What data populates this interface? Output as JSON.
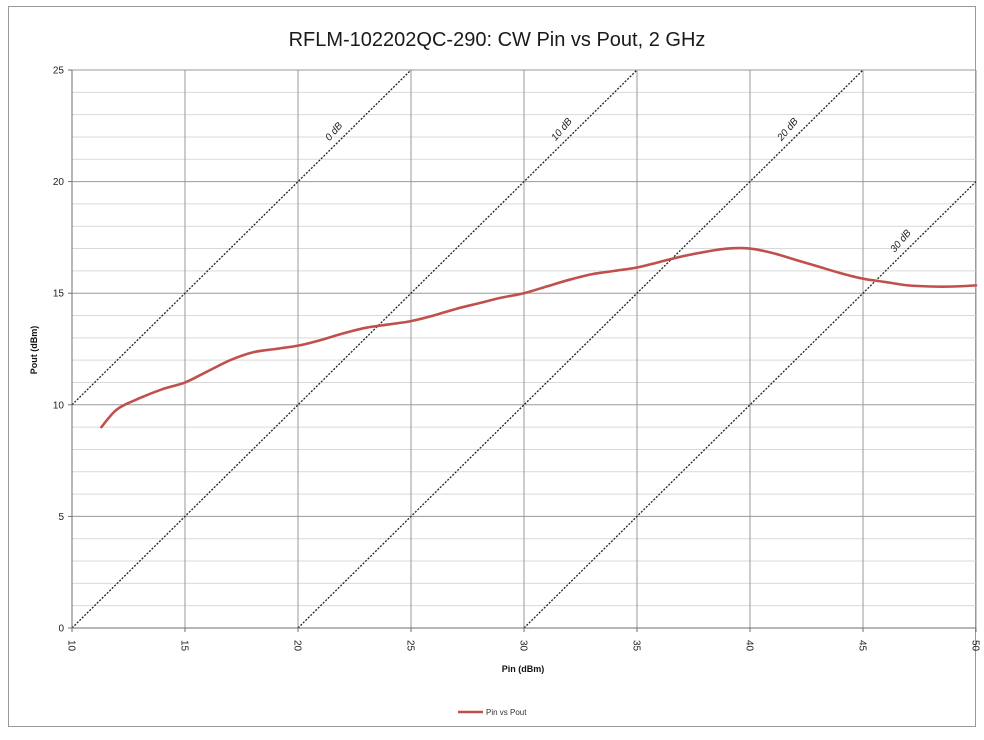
{
  "chart_data": {
    "type": "line",
    "title": "RFLM-102202QC-290:  CW Pin vs Pout, 2 GHz",
    "xlabel": "Pin (dBm)",
    "ylabel": "Pout (dBm)",
    "xlim": [
      10,
      50
    ],
    "ylim": [
      0,
      25
    ],
    "x_ticks": [
      10,
      15,
      20,
      25,
      30,
      35,
      40,
      45,
      50
    ],
    "y_ticks": [
      0,
      5,
      10,
      15,
      20,
      25
    ],
    "x_tick_labels": [
      "10",
      "15",
      "20",
      "25",
      "30",
      "35",
      "40",
      "45",
      "50"
    ],
    "y_tick_labels": [
      "0",
      "5",
      "10",
      "15",
      "20",
      "25"
    ],
    "grid": true,
    "legend_position": "bottom",
    "series": [
      {
        "name": "Pin vs Pout",
        "color": "#c0504d",
        "x": [
          11.3,
          12,
          13,
          14,
          15,
          16,
          17,
          18,
          19,
          20,
          21,
          22,
          23,
          24,
          25,
          26,
          27,
          28,
          29,
          30,
          31,
          32,
          33,
          34,
          35,
          36,
          37,
          38,
          39,
          40,
          41,
          42,
          43,
          44,
          45,
          46,
          47,
          48,
          49,
          50
        ],
        "y": [
          9.0,
          9.8,
          10.3,
          10.7,
          11.0,
          11.5,
          12.0,
          12.35,
          12.5,
          12.65,
          12.9,
          13.2,
          13.45,
          13.6,
          13.75,
          14.0,
          14.3,
          14.55,
          14.8,
          15.0,
          15.3,
          15.6,
          15.85,
          16.0,
          16.15,
          16.4,
          16.65,
          16.85,
          17.0,
          17.0,
          16.8,
          16.5,
          16.2,
          15.9,
          15.65,
          15.5,
          15.35,
          15.3,
          15.3,
          15.35
        ]
      }
    ],
    "reference_lines": [
      {
        "label": "0 dB",
        "gain_db": 0,
        "color": "#222222"
      },
      {
        "label": "10 dB",
        "gain_db": 10,
        "color": "#222222"
      },
      {
        "label": "20 dB",
        "gain_db": 20,
        "color": "#222222"
      },
      {
        "label": "30 dB",
        "gain_db": 30,
        "color": "#222222"
      }
    ]
  }
}
